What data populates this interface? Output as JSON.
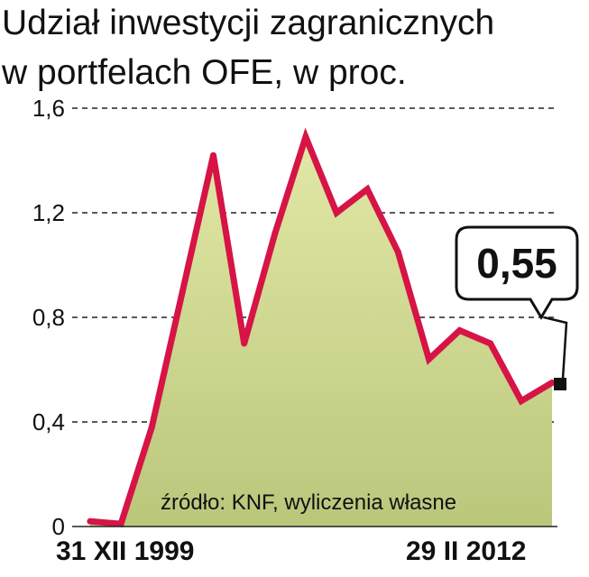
{
  "chart_data": {
    "type": "area",
    "title_lines": [
      "Udział inwestycji zagranicznych",
      "w portfelach OFE, w proc."
    ],
    "xlabel": "",
    "ylabel": "",
    "x_start_label": "31 XII 1999",
    "x_end_label": "29 II 2012",
    "ylim": [
      0,
      1.6
    ],
    "yticks": [
      "0",
      "0,4",
      "0,8",
      "1,2",
      "1,6"
    ],
    "grid": true,
    "series": [
      {
        "values": [
          0.02,
          0.01,
          0.38,
          0.9,
          1.42,
          0.7,
          1.12,
          1.49,
          1.2,
          1.29,
          1.05,
          0.64,
          0.75,
          0.7,
          0.48,
          0.55
        ]
      }
    ],
    "callout": "0,55",
    "source": "źródło: KNF, wyliczenia własne",
    "colors": {
      "line": "#d61446",
      "fill_top": "#e2e8a6",
      "fill_bottom": "#b9c77b",
      "grid": "#222222"
    }
  }
}
